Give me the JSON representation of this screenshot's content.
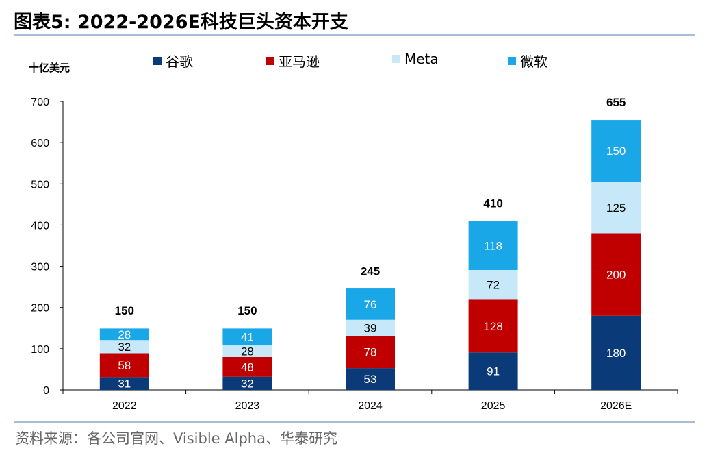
{
  "title": "图表5:  2022-2026E科技巨头资本开支",
  "source": "资料来源：各公司官网、Visible Alpha、华泰研究",
  "chart_data": {
    "type": "bar",
    "stacked": true,
    "ylabel": "十亿美元",
    "ylim": [
      0,
      700
    ],
    "yticks": [
      0,
      100,
      200,
      300,
      400,
      500,
      600,
      700
    ],
    "grid": false,
    "legend_position": "top",
    "categories": [
      "2022",
      "2023",
      "2024",
      "2025",
      "2026E"
    ],
    "series": [
      {
        "name": "谷歌",
        "color": "#0b3a78",
        "values": [
          31,
          32,
          53,
          91,
          180
        ]
      },
      {
        "name": "亚马逊",
        "color": "#c00000",
        "values": [
          58,
          48,
          78,
          128,
          200
        ]
      },
      {
        "name": "Meta",
        "color": "#c6e8f8",
        "values": [
          32,
          28,
          39,
          72,
          125
        ]
      },
      {
        "name": "微软",
        "color": "#1aa7e8",
        "values": [
          28,
          41,
          76,
          118,
          150
        ]
      }
    ],
    "totals": [
      150,
      150,
      245,
      410,
      655
    ]
  }
}
